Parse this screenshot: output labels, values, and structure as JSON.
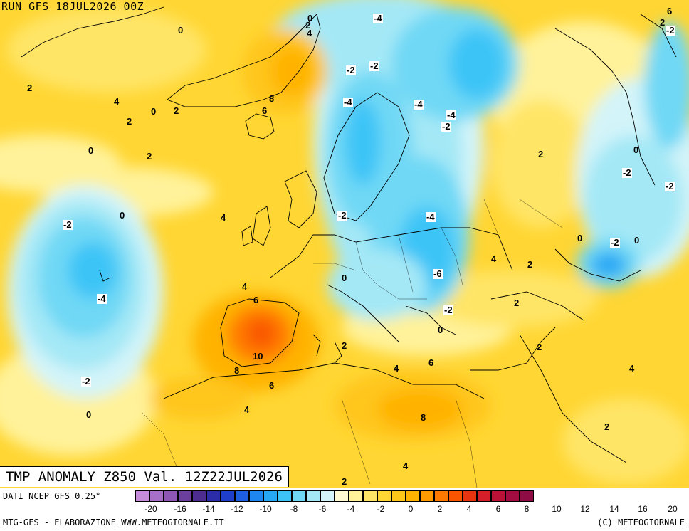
{
  "header": {
    "run": "RUN GFS 18JUL2026 00Z"
  },
  "title": "TMP ANOMALY Z850 Val. 12Z22JUL2026",
  "footer": {
    "source": "DATI NCEP GFS 0.25°",
    "producer": "MTG-GFS - ELABORAZIONE WWW.METEOGIORNALE.IT",
    "copyright": "(C) METEOGIORNALE"
  },
  "colorbar": {
    "colors": [
      "#c78cd9",
      "#a86fc8",
      "#8f56b4",
      "#6a3f9e",
      "#4d2d8f",
      "#2a2ca8",
      "#1f3ec9",
      "#1d5fe0",
      "#1e86f0",
      "#27a8f5",
      "#3cc4f7",
      "#6fd8f5",
      "#a4e8f6",
      "#d3f4f9",
      "#fffad2",
      "#fff29a",
      "#ffe566",
      "#ffd633",
      "#ffc61a",
      "#ffb300",
      "#ff9a00",
      "#ff7a00",
      "#f95500",
      "#e93410",
      "#d41e2a",
      "#bd1238",
      "#a30c40",
      "#8e0b44"
    ],
    "ticks": [
      "-20",
      "-16",
      "-14",
      "-12",
      "-10",
      "-8",
      "-6",
      "-4",
      "-2",
      "0",
      "2",
      "4",
      "6",
      "8",
      "10",
      "12",
      "14",
      "16",
      "20"
    ]
  },
  "map_labels": [
    {
      "v": "0",
      "box": false
    },
    {
      "v": "-4",
      "box": true
    },
    {
      "v": "6",
      "box": false
    },
    {
      "v": "2",
      "box": false
    },
    {
      "v": "-2",
      "box": false
    },
    {
      "v": "0",
      "box": false
    },
    {
      "v": "2",
      "box": false
    },
    {
      "v": "4",
      "box": false
    },
    {
      "v": "-2",
      "box": true
    },
    {
      "v": "-2",
      "box": true
    },
    {
      "v": "2",
      "box": false
    },
    {
      "v": "8",
      "box": false
    },
    {
      "v": "4",
      "box": false
    },
    {
      "v": "0",
      "box": false
    },
    {
      "v": "2",
      "box": false
    },
    {
      "v": "6",
      "box": false
    },
    {
      "v": "-4",
      "box": true
    },
    {
      "v": "-4",
      "box": true
    },
    {
      "v": "-4",
      "box": true
    },
    {
      "v": "-2",
      "box": true
    },
    {
      "v": "2",
      "box": false
    },
    {
      "v": "0",
      "box": false
    },
    {
      "v": "0",
      "box": false
    },
    {
      "v": "2",
      "box": false
    },
    {
      "v": "2",
      "box": false
    },
    {
      "v": "-2",
      "box": true
    },
    {
      "v": "-2",
      "box": true
    },
    {
      "v": "0",
      "box": false
    },
    {
      "v": "-2",
      "box": true
    },
    {
      "v": "4",
      "box": false
    },
    {
      "v": "-2",
      "box": true
    },
    {
      "v": "-4",
      "box": true
    },
    {
      "v": "0",
      "box": false
    },
    {
      "v": "-2",
      "box": true
    },
    {
      "v": "0",
      "box": false
    },
    {
      "v": "4",
      "box": false
    },
    {
      "v": "2",
      "box": false
    },
    {
      "v": "-6",
      "box": true
    },
    {
      "v": "0",
      "box": false
    },
    {
      "v": "-4",
      "box": true
    },
    {
      "v": "4",
      "box": false
    },
    {
      "v": "6",
      "box": false
    },
    {
      "v": "-2",
      "box": true
    },
    {
      "v": "2",
      "box": false
    },
    {
      "v": "0",
      "box": false
    },
    {
      "v": "10",
      "box": false
    },
    {
      "v": "2",
      "box": false
    },
    {
      "v": "2",
      "box": false
    },
    {
      "v": "-2",
      "box": true
    },
    {
      "v": "8",
      "box": false
    },
    {
      "v": "4",
      "box": false
    },
    {
      "v": "6",
      "box": false
    },
    {
      "v": "4",
      "box": false
    },
    {
      "v": "6",
      "box": false
    },
    {
      "v": "0",
      "box": false
    },
    {
      "v": "4",
      "box": false
    },
    {
      "v": "8",
      "box": false
    },
    {
      "v": "2",
      "box": false
    },
    {
      "v": "4",
      "box": false
    },
    {
      "v": "2",
      "box": false
    }
  ]
}
